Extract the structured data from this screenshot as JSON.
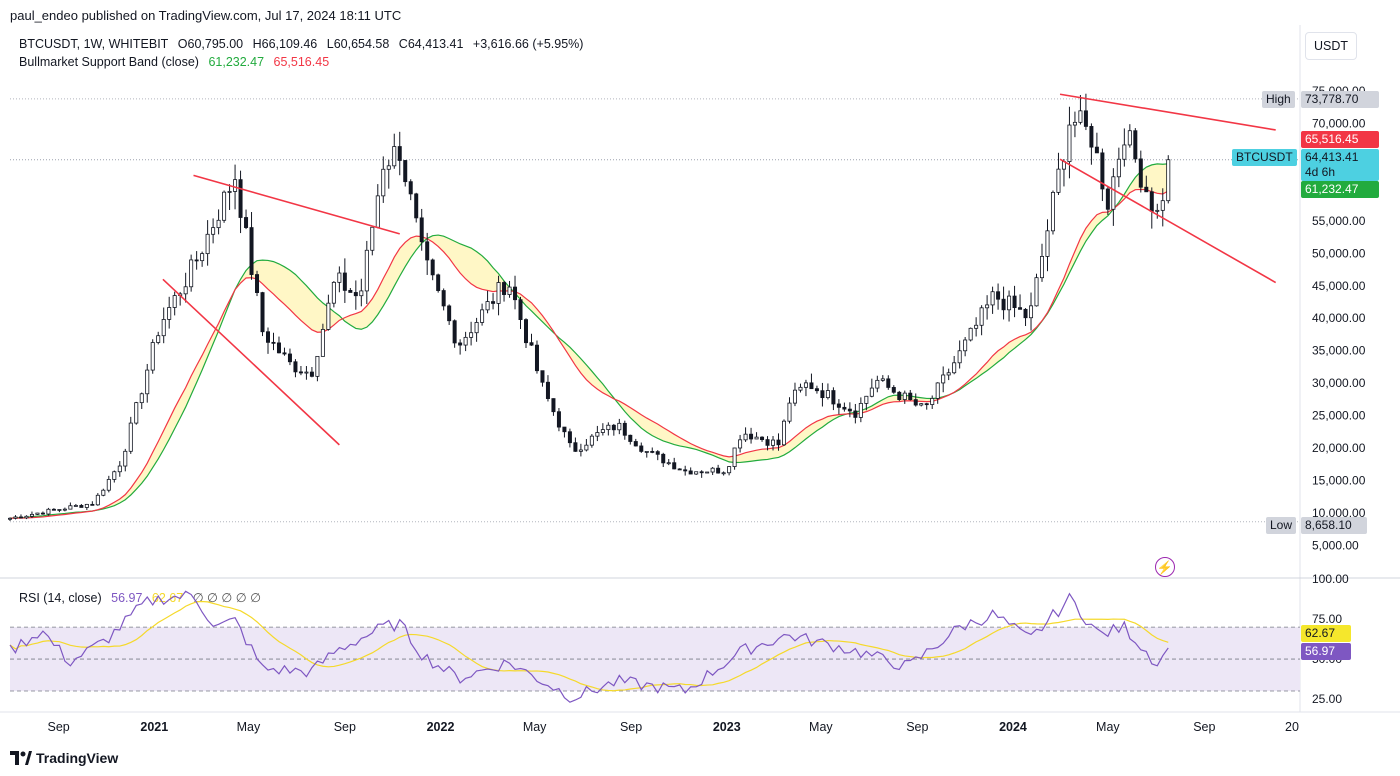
{
  "header": {
    "published": "paul_endeo published on TradingView.com, Jul 17, 2024 18:11 UTC",
    "symbol_line": "BTCUSDT, 1W, WHITEBIT",
    "open": "O60,795.00",
    "high": "H66,109.46",
    "low": "L60,654.58",
    "close": "C64,413.41",
    "change": "+3,616.66 (+5.95%)",
    "indicator_name": "Bullmarket Support Band (close)",
    "indicator_v1": "61,232.47",
    "indicator_v2": "65,516.45",
    "rsi_name": "RSI (14, close)",
    "rsi_v1": "56.97",
    "rsi_v2": "62.67",
    "rsi_flags": "∅ ∅ ∅ ∅ ∅"
  },
  "currency_button": "USDT",
  "branding": "TradingView",
  "price_labels": {
    "high_tag": "High",
    "high_value": "73,778.70",
    "low_tag": "Low",
    "low_value": "8,658.10",
    "ema_red": "65,516.45",
    "symbol": "BTCUSDT",
    "last": "64,413.41",
    "countdown": "4d 6h",
    "sma_green": "61,232.47",
    "rsi_ma": "62.67",
    "rsi_value": "56.97"
  },
  "colors": {
    "up": "#131722",
    "down": "#131722",
    "band_red": "#f23645",
    "band_green": "#22ab3e",
    "band_fill": "#fff7c6",
    "trendline": "#f23645",
    "rsi_line": "#7e57c2",
    "rsi_ma": "#f5d92b",
    "rsi_band": "#ede7f6",
    "last_price": "#4dd0e1"
  },
  "chart_data": [
    {
      "type": "candlestick",
      "title": "BTCUSDT, 1W, WHITEBIT",
      "y_axis_ticks": [
        "5,000.00",
        "10,000.00",
        "15,000.00",
        "20,000.00",
        "25,000.00",
        "30,000.00",
        "35,000.00",
        "40,000.00",
        "45,000.00",
        "50,000.00",
        "55,000.00",
        "60,000.00",
        "65,000.00",
        "70,000.00",
        "75,000.00"
      ],
      "x_axis_ticks": [
        "Sep",
        "2021",
        "May",
        "Sep",
        "2022",
        "May",
        "Sep",
        "2023",
        "May",
        "Sep",
        "2024",
        "May",
        "Sep",
        "20"
      ],
      "ylim": [
        4000,
        77000
      ],
      "range_high": 73778.7,
      "range_low": 8658.1,
      "price_path": [
        [
          "2020-07-01",
          9200
        ],
        [
          "2020-09-01",
          10600
        ],
        [
          "2020-10-15",
          11500
        ],
        [
          "2020-11-20",
          18000
        ],
        [
          "2021-01-08",
          39000
        ],
        [
          "2021-02-20",
          48000
        ],
        [
          "2021-04-14",
          62000
        ],
        [
          "2021-05-19",
          38000
        ],
        [
          "2021-06-22",
          33000
        ],
        [
          "2021-07-20",
          31500
        ],
        [
          "2021-08-20",
          46000
        ],
        [
          "2021-09-20",
          43000
        ],
        [
          "2021-10-20",
          64000
        ],
        [
          "2021-11-10",
          66000
        ],
        [
          "2021-12-10",
          49000
        ],
        [
          "2022-01-24",
          36000
        ],
        [
          "2022-03-28",
          46000
        ],
        [
          "2022-05-12",
          29000
        ],
        [
          "2022-06-18",
          19500
        ],
        [
          "2022-07-25",
          22500
        ],
        [
          "2022-08-15",
          23500
        ],
        [
          "2022-09-20",
          19500
        ],
        [
          "2022-11-09",
          16500
        ],
        [
          "2022-12-31",
          16600
        ],
        [
          "2023-01-20",
          22500
        ],
        [
          "2023-03-10",
          20500
        ],
        [
          "2023-03-20",
          27000
        ],
        [
          "2023-04-14",
          30000
        ],
        [
          "2023-06-15",
          25500
        ],
        [
          "2023-07-10",
          30500
        ],
        [
          "2023-09-10",
          25800
        ],
        [
          "2023-10-25",
          34500
        ],
        [
          "2023-12-08",
          43500
        ],
        [
          "2024-01-22",
          40000
        ],
        [
          "2024-02-28",
          62000
        ],
        [
          "2024-03-14",
          71000
        ],
        [
          "2024-04-10",
          68000
        ],
        [
          "2024-05-01",
          58000
        ],
        [
          "2024-05-22",
          69000
        ],
        [
          "2024-06-25",
          58000
        ],
        [
          "2024-07-05",
          55500
        ],
        [
          "2024-07-17",
          64413.41
        ]
      ],
      "band_sma_close": 61232.47,
      "band_ema_close": 65516.45,
      "last_close": 64413.41
    },
    {
      "type": "line",
      "title": "RSI (14, close)",
      "y_axis_ticks": [
        "25.00",
        "50.00",
        "75.00",
        "100.00"
      ],
      "ylim": [
        20,
        102
      ],
      "band_upper": 70,
      "band_middle": 50,
      "band_lower": 30,
      "rsi_path": [
        [
          "2020-07-01",
          55
        ],
        [
          "2020-08-10",
          68
        ],
        [
          "2020-09-15",
          48
        ],
        [
          "2020-11-01",
          62
        ],
        [
          "2020-12-20",
          85
        ],
        [
          "2021-01-10",
          88
        ],
        [
          "2021-02-20",
          90
        ],
        [
          "2021-03-20",
          70
        ],
        [
          "2021-04-14",
          74
        ],
        [
          "2021-05-19",
          44
        ],
        [
          "2021-07-20",
          42
        ],
        [
          "2021-08-20",
          55
        ],
        [
          "2021-10-20",
          70
        ],
        [
          "2021-11-10",
          72
        ],
        [
          "2021-12-10",
          52
        ],
        [
          "2022-01-24",
          38
        ],
        [
          "2022-03-28",
          48
        ],
        [
          "2022-05-12",
          36
        ],
        [
          "2022-06-18",
          26
        ],
        [
          "2022-08-15",
          36
        ],
        [
          "2022-11-09",
          30
        ],
        [
          "2023-01-20",
          55
        ],
        [
          "2023-03-20",
          65
        ],
        [
          "2023-06-15",
          55
        ],
        [
          "2023-08-20",
          45
        ],
        [
          "2023-10-25",
          70
        ],
        [
          "2023-12-08",
          78
        ],
        [
          "2024-01-22",
          62
        ],
        [
          "2024-03-14",
          88
        ],
        [
          "2024-04-20",
          65
        ],
        [
          "2024-05-22",
          70
        ],
        [
          "2024-07-05",
          46
        ],
        [
          "2024-07-17",
          56.97
        ]
      ],
      "rsi_last": 56.97,
      "rsi_ma_last": 62.67
    }
  ]
}
